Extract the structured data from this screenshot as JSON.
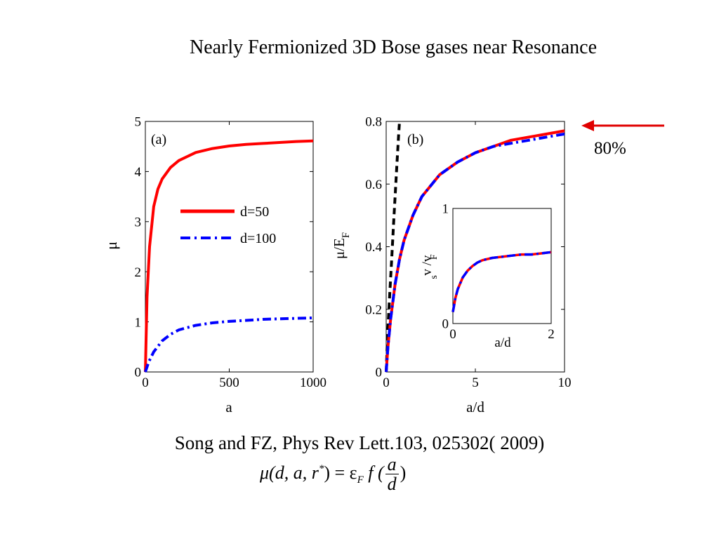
{
  "slide": {
    "title": "Nearly Fermionized 3D Bose gases near Resonance",
    "citation": "Song and FZ, Phys Rev Lett.103, 025302( 2009)",
    "annotation": "80%",
    "annotation_color": "#e00000",
    "equation": {
      "lhs": "μ(d, a, r",
      "lhs_sup": "*",
      "mid": ") = ε",
      "mid_sub": "F",
      "f": " f (",
      "num": "a",
      "den": "d",
      "close": ")"
    }
  },
  "chart_data": [
    {
      "type": "line",
      "panel_label": "(a)",
      "xlabel": "a",
      "ylabel": "μ",
      "xlim": [
        0,
        1000
      ],
      "ylim": [
        0,
        5
      ],
      "xticks": [
        0,
        500,
        1000
      ],
      "yticks": [
        0,
        1,
        2,
        3,
        4,
        5
      ],
      "legend_position": "center-right",
      "series": [
        {
          "name": "d=50",
          "color": "#ff0000",
          "style": "solid",
          "x": [
            0,
            10,
            25,
            50,
            75,
            100,
            150,
            200,
            300,
            400,
            500,
            600,
            700,
            800,
            900,
            1000
          ],
          "values": [
            0,
            1.5,
            2.5,
            3.3,
            3.65,
            3.85,
            4.08,
            4.22,
            4.38,
            4.46,
            4.51,
            4.54,
            4.56,
            4.58,
            4.6,
            4.61
          ]
        },
        {
          "name": "d=100",
          "color": "#0000ff",
          "style": "dashdot",
          "x": [
            0,
            20,
            50,
            100,
            150,
            200,
            300,
            400,
            500,
            600,
            700,
            800,
            900,
            1000
          ],
          "values": [
            0,
            0.2,
            0.4,
            0.62,
            0.75,
            0.84,
            0.93,
            0.98,
            1.01,
            1.03,
            1.05,
            1.06,
            1.07,
            1.08
          ]
        }
      ]
    },
    {
      "type": "line",
      "panel_label": "(b)",
      "xlabel": "a/d",
      "ylabel": "μ/E",
      "ylabel_sub": "F",
      "xlim": [
        0,
        10
      ],
      "ylim": [
        0,
        0.8
      ],
      "xticks": [
        0,
        5,
        10
      ],
      "yticks": [
        0,
        0.2,
        0.4,
        0.6,
        0.8
      ],
      "series": [
        {
          "color": "#000000",
          "style": "dashed",
          "x": [
            0,
            0.1,
            0.2,
            0.3,
            0.4,
            0.5,
            0.6,
            0.7,
            0.75
          ],
          "values": [
            0,
            0.14,
            0.25,
            0.35,
            0.46,
            0.56,
            0.66,
            0.76,
            0.8
          ]
        },
        {
          "color": "#ff0000",
          "style": "solid",
          "x": [
            0,
            0.1,
            0.25,
            0.5,
            0.75,
            1,
            1.5,
            2,
            3,
            4,
            5,
            6,
            7,
            8,
            9,
            10
          ],
          "values": [
            0,
            0.08,
            0.17,
            0.28,
            0.36,
            0.42,
            0.5,
            0.56,
            0.63,
            0.67,
            0.7,
            0.72,
            0.74,
            0.75,
            0.76,
            0.77
          ]
        },
        {
          "color": "#0000ff",
          "style": "dashdot",
          "x": [
            0,
            0.1,
            0.25,
            0.5,
            0.75,
            1,
            1.5,
            2,
            3,
            4,
            5,
            6,
            7,
            8,
            9,
            10
          ],
          "values": [
            0,
            0.08,
            0.17,
            0.28,
            0.36,
            0.42,
            0.5,
            0.56,
            0.63,
            0.67,
            0.7,
            0.72,
            0.73,
            0.74,
            0.75,
            0.76
          ]
        }
      ],
      "inset": {
        "xlabel": "a/d",
        "ylabel": "v /v",
        "ylabel_sub1": "s",
        "ylabel_sub2": "F",
        "xlim": [
          0,
          2
        ],
        "ylim": [
          0,
          1
        ],
        "xticks": [
          0,
          2
        ],
        "yticks": [
          0,
          1
        ],
        "series": [
          {
            "color": "#ff0000",
            "style": "solid",
            "x": [
              0,
              0.05,
              0.1,
              0.2,
              0.3,
              0.4,
              0.5,
              0.6,
              0.8,
              1,
              1.2,
              1.4,
              1.6,
              1.8,
              2
            ],
            "values": [
              0.1,
              0.22,
              0.3,
              0.4,
              0.46,
              0.5,
              0.53,
              0.55,
              0.57,
              0.58,
              0.59,
              0.6,
              0.6,
              0.61,
              0.62
            ]
          },
          {
            "color": "#0000ff",
            "style": "dashdot",
            "x": [
              0,
              0.05,
              0.1,
              0.2,
              0.3,
              0.4,
              0.5,
              0.6,
              0.8,
              1,
              1.2,
              1.4,
              1.6,
              1.8,
              2
            ],
            "values": [
              0.1,
              0.22,
              0.3,
              0.4,
              0.46,
              0.5,
              0.53,
              0.55,
              0.57,
              0.58,
              0.59,
              0.6,
              0.6,
              0.61,
              0.62
            ]
          }
        ]
      }
    }
  ]
}
